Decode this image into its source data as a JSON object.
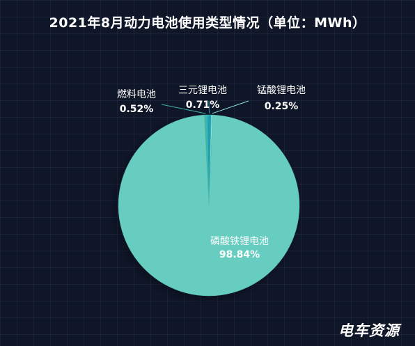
{
  "chart_data": {
    "type": "pie",
    "title": "2021年8月动力电池使用类型情况（单位：MWh）",
    "categories": [
      "燃料电池",
      "三元锂电池",
      "锰酸锂电池",
      "磷酸铁锂电池"
    ],
    "values": [
      0.52,
      0.71,
      0.25,
      98.84
    ],
    "value_labels": [
      "0.52%",
      "0.71%",
      "0.25%",
      "98.84%"
    ],
    "colors": [
      "#3fb6a8",
      "#1e9fb4",
      "#8fe6da",
      "#66cdc0"
    ],
    "legend": "none",
    "grid": false
  },
  "watermark": "电车资源"
}
